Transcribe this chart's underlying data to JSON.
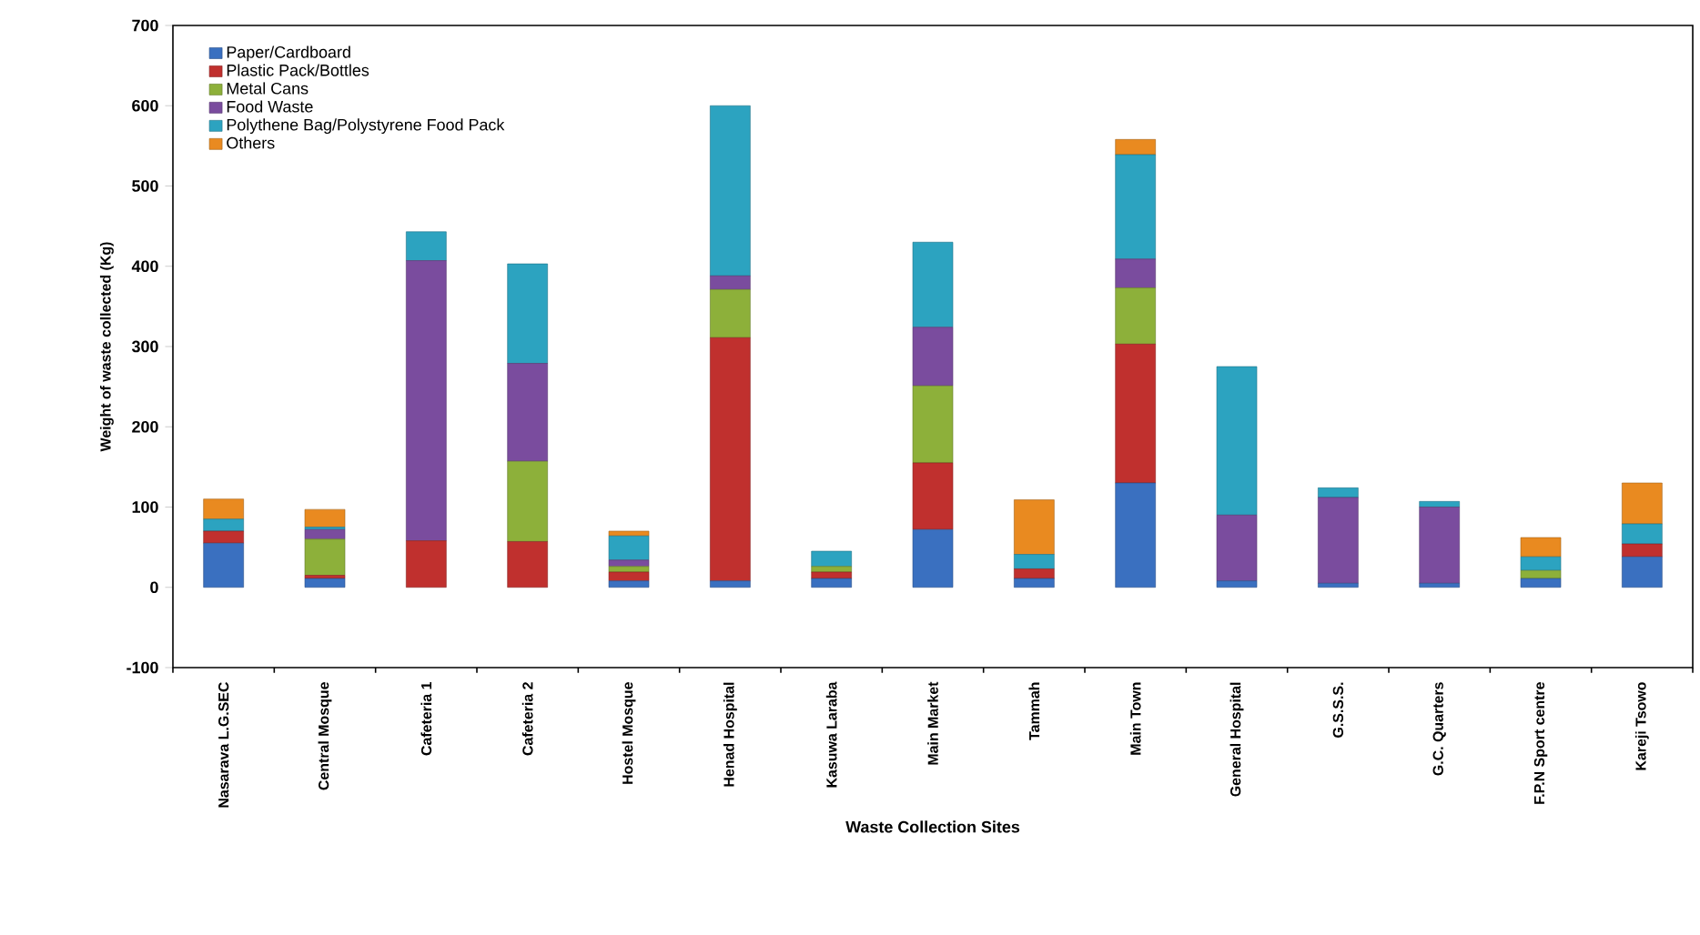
{
  "chart_data": {
    "type": "bar",
    "stacked": true,
    "xlabel": "Waste Collection Sites",
    "ylabel": "Weight of waste collected (Kg)",
    "categories": [
      "Nasarava L.G.SEC",
      "Central Mosque",
      "Cafeteria 1",
      "Cafeteria 2",
      "Hostel Mosque",
      "Henad Hospital",
      "Kasuwa Laraba",
      "Main Market",
      "Tammah",
      "Main Town",
      "General Hospital",
      "G.S.S.S.",
      "G.C. Quarters",
      "F.P.N Sport centre",
      "Kareji Tsowo"
    ],
    "series": [
      {
        "name": "Paper/Cardboard",
        "color": "#3a70c0",
        "values": [
          55,
          11,
          0,
          0,
          8,
          8,
          11,
          72,
          11,
          130,
          8,
          5,
          5,
          11,
          38
        ]
      },
      {
        "name": "Plastic Pack/Bottles",
        "color": "#c0302e",
        "values": [
          15,
          4,
          58,
          57,
          11,
          303,
          8,
          83,
          12,
          173,
          0,
          0,
          0,
          0,
          16
        ]
      },
      {
        "name": "Metal Cans",
        "color": "#8db03a",
        "values": [
          0,
          45,
          0,
          100,
          7,
          60,
          7,
          96,
          0,
          70,
          0,
          0,
          0,
          10,
          0
        ]
      },
      {
        "name": "Food Waste",
        "color": "#7a4c9e",
        "values": [
          0,
          12,
          349,
          122,
          8,
          17,
          0,
          73,
          0,
          36,
          82,
          107,
          95,
          0,
          0
        ]
      },
      {
        "name": "Polythene Bag/Polystyrene Food Pack",
        "color": "#2ca3c0",
        "values": [
          15,
          3,
          36,
          124,
          30,
          212,
          19,
          106,
          18,
          130,
          185,
          12,
          7,
          17,
          25
        ]
      },
      {
        "name": "Others",
        "color": "#e98a20",
        "values": [
          25,
          22,
          0,
          0,
          6,
          0,
          0,
          0,
          68,
          19,
          0,
          0,
          0,
          24,
          51
        ]
      }
    ],
    "ylim": [
      -100,
      700
    ],
    "yticks": [
      -100,
      0,
      100,
      200,
      300,
      400,
      500,
      600,
      700
    ],
    "grid": false,
    "legend": "top left"
  }
}
